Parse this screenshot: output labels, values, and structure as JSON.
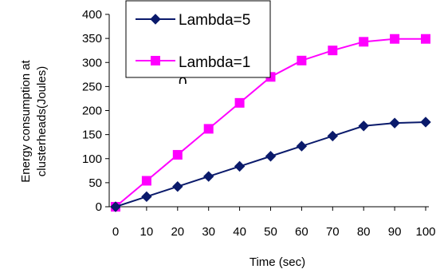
{
  "chart_data": {
    "type": "line",
    "title": "",
    "xlabel": "Time (sec)",
    "ylabel": [
      "Energy consumption at",
      "clusterheads(Joules)"
    ],
    "x": [
      0,
      10,
      20,
      30,
      40,
      50,
      60,
      70,
      80,
      90,
      100
    ],
    "x_tick_labels": [
      "0",
      "10",
      "20",
      "30",
      "40",
      "50",
      "60",
      "70",
      "80",
      "90",
      "100"
    ],
    "y_tick_labels": [
      "0",
      "50",
      "100",
      "150",
      "200",
      "250",
      "300",
      "350",
      "400"
    ],
    "ylim": [
      0,
      400
    ],
    "grid": false,
    "legend_position": "top-left-inside",
    "series": [
      {
        "name": "Lambda=5",
        "color": "#0a1a6b",
        "marker": "diamond",
        "values": [
          0,
          21,
          42,
          63,
          84,
          105,
          126,
          147,
          168,
          174,
          176
        ]
      },
      {
        "name": "Lambda=1",
        "name_overflow": "0",
        "color": "#ff00ff",
        "marker": "square",
        "values": [
          0,
          54,
          108,
          162,
          216,
          270,
          304,
          325,
          343,
          349,
          349
        ]
      }
    ]
  }
}
